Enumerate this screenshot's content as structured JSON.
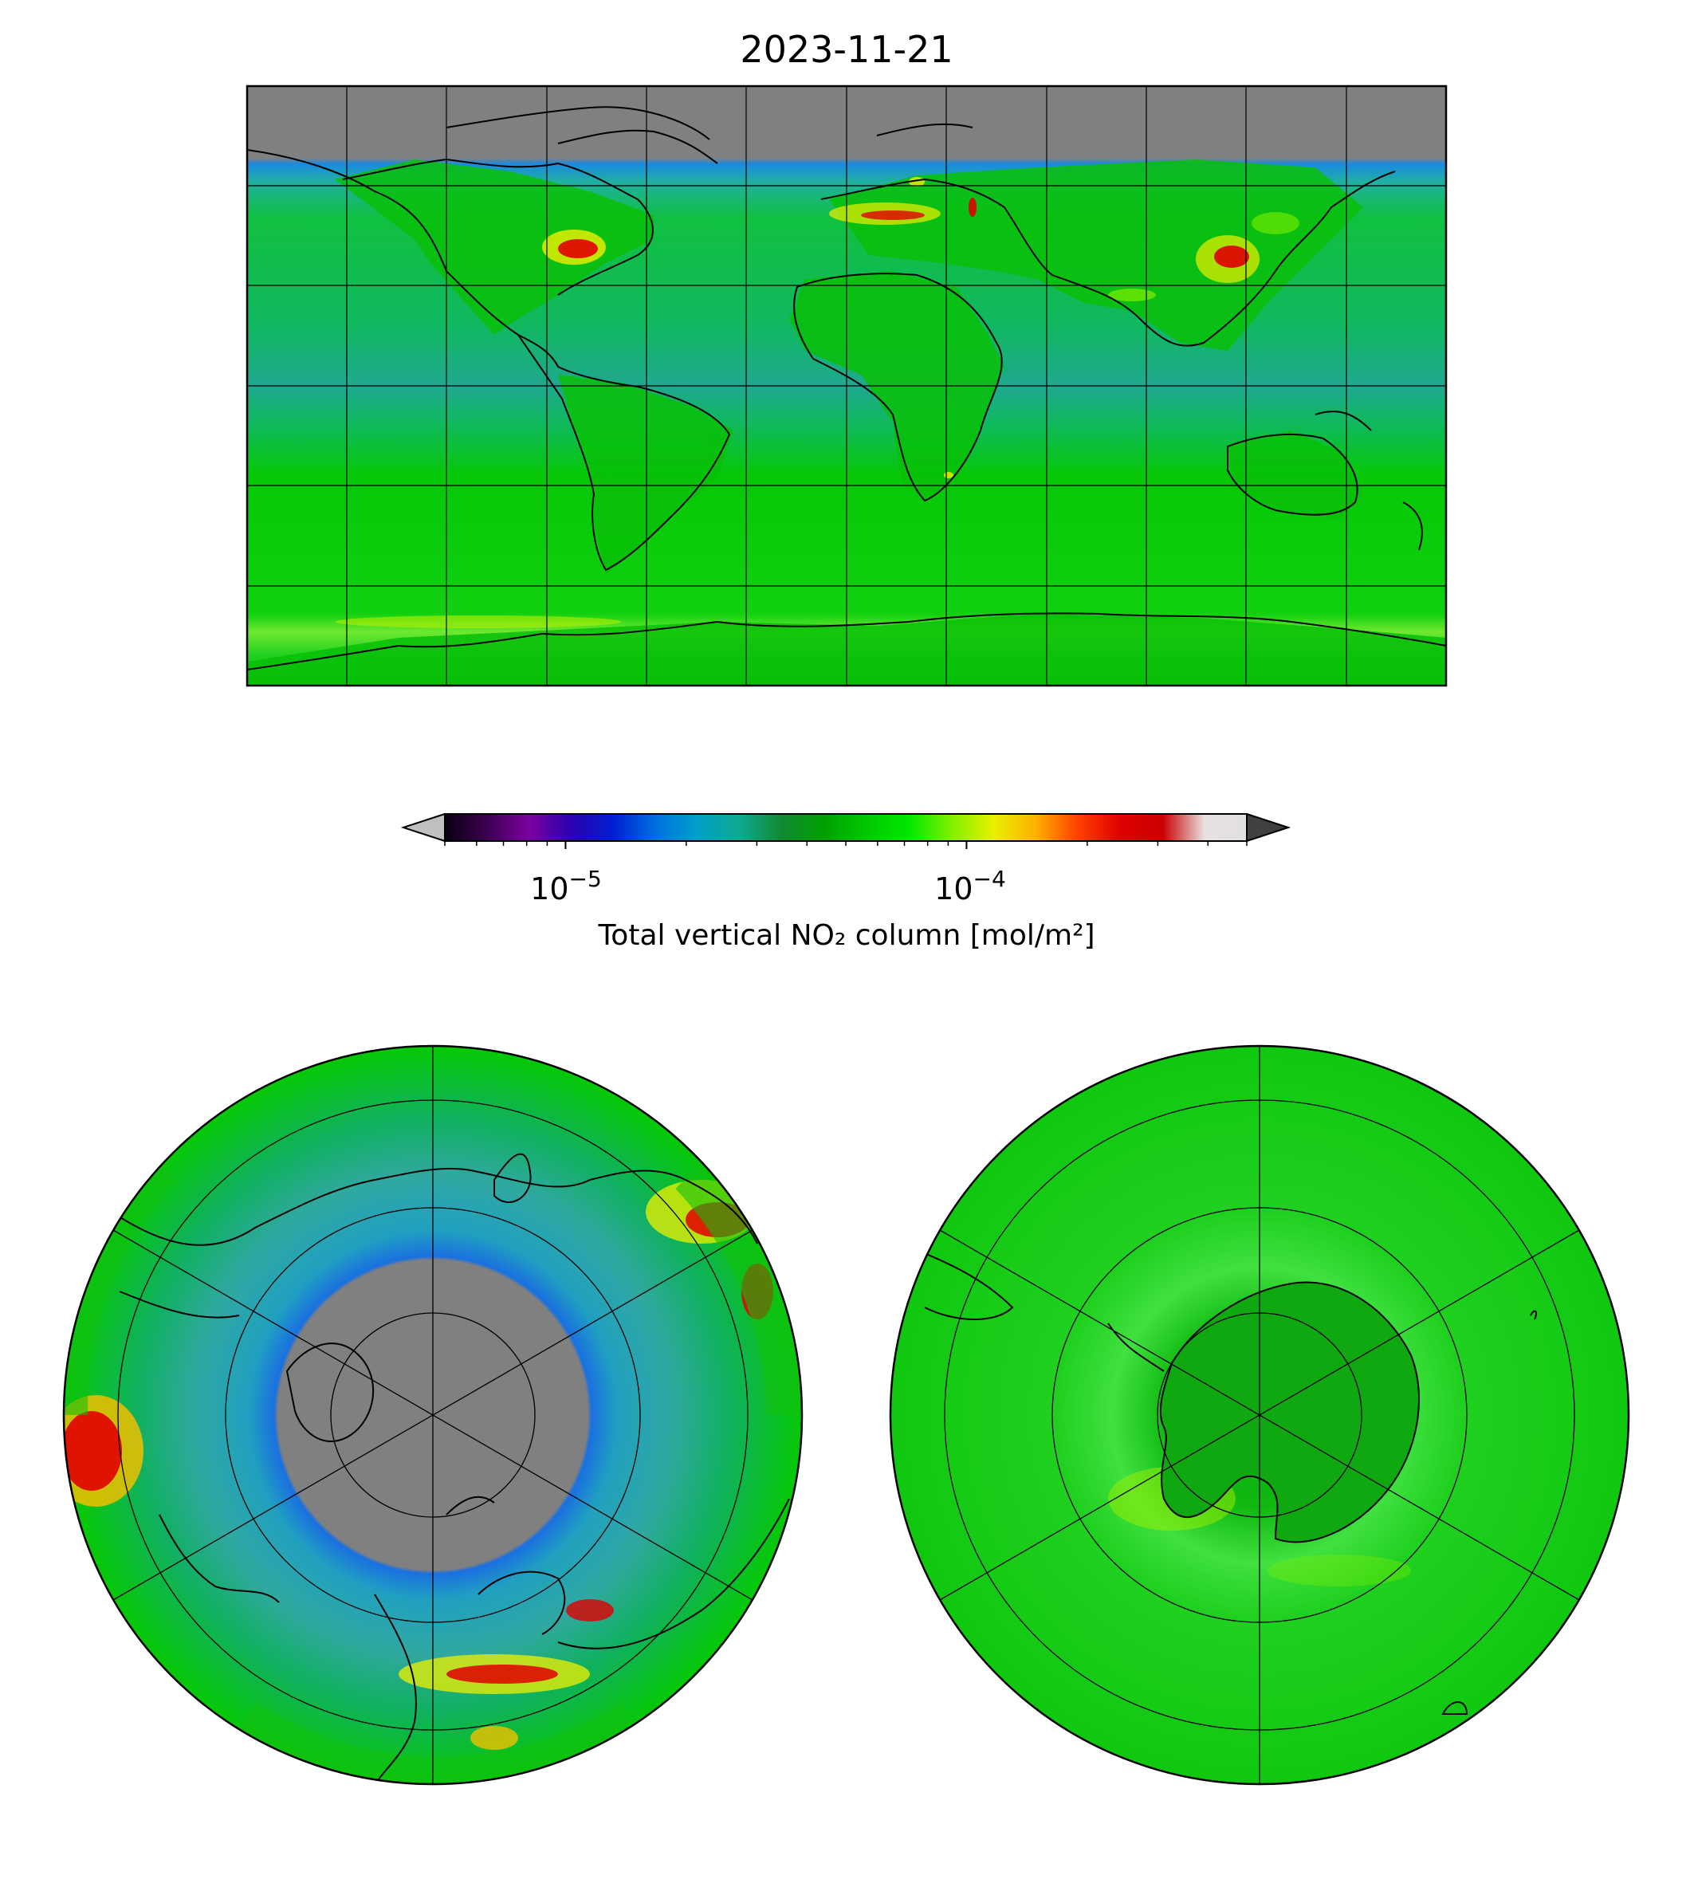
{
  "figure": {
    "title": "2023-11-21"
  },
  "colorbar": {
    "label": "Total vertical NO₂ column [mol/m²]",
    "scale": "log",
    "range": [
      5e-06,
      0.0005
    ],
    "ticks": [
      {
        "value": 1e-05,
        "base": "10",
        "exp": "−5"
      },
      {
        "value": 0.0001,
        "base": "10",
        "exp": "−4"
      }
    ],
    "extend": "both",
    "under_color": "#c0c0c0",
    "over_color": "#404040",
    "colors": [
      "#0a0010",
      "#3c0050",
      "#7a00a0",
      "#2a00b0",
      "#0020d0",
      "#0070e0",
      "#00a0c8",
      "#10a890",
      "#108a30",
      "#00a000",
      "#00c800",
      "#00e800",
      "#80f000",
      "#e8f000",
      "#ffb000",
      "#ff4000",
      "#e00000",
      "#c80000",
      "#e8e0e0",
      "#e0e0e0"
    ]
  },
  "maps": {
    "top": {
      "projection": "plate-carree",
      "land_color": "#00b000",
      "no_data_color": "#808080",
      "ocean_tint": "#20b070"
    },
    "north_polar": {
      "projection": "north-polar-stereographic",
      "no_data_color": "#808080"
    },
    "south_polar": {
      "projection": "south-polar-stereographic"
    }
  },
  "colors": {
    "green_main": "#06c806",
    "green_light": "#3ae83a",
    "teal": "#2aa69a",
    "blue": "#1a7ae0",
    "gray": "#808080",
    "yellow": "#f0f000",
    "red": "#e00000"
  }
}
